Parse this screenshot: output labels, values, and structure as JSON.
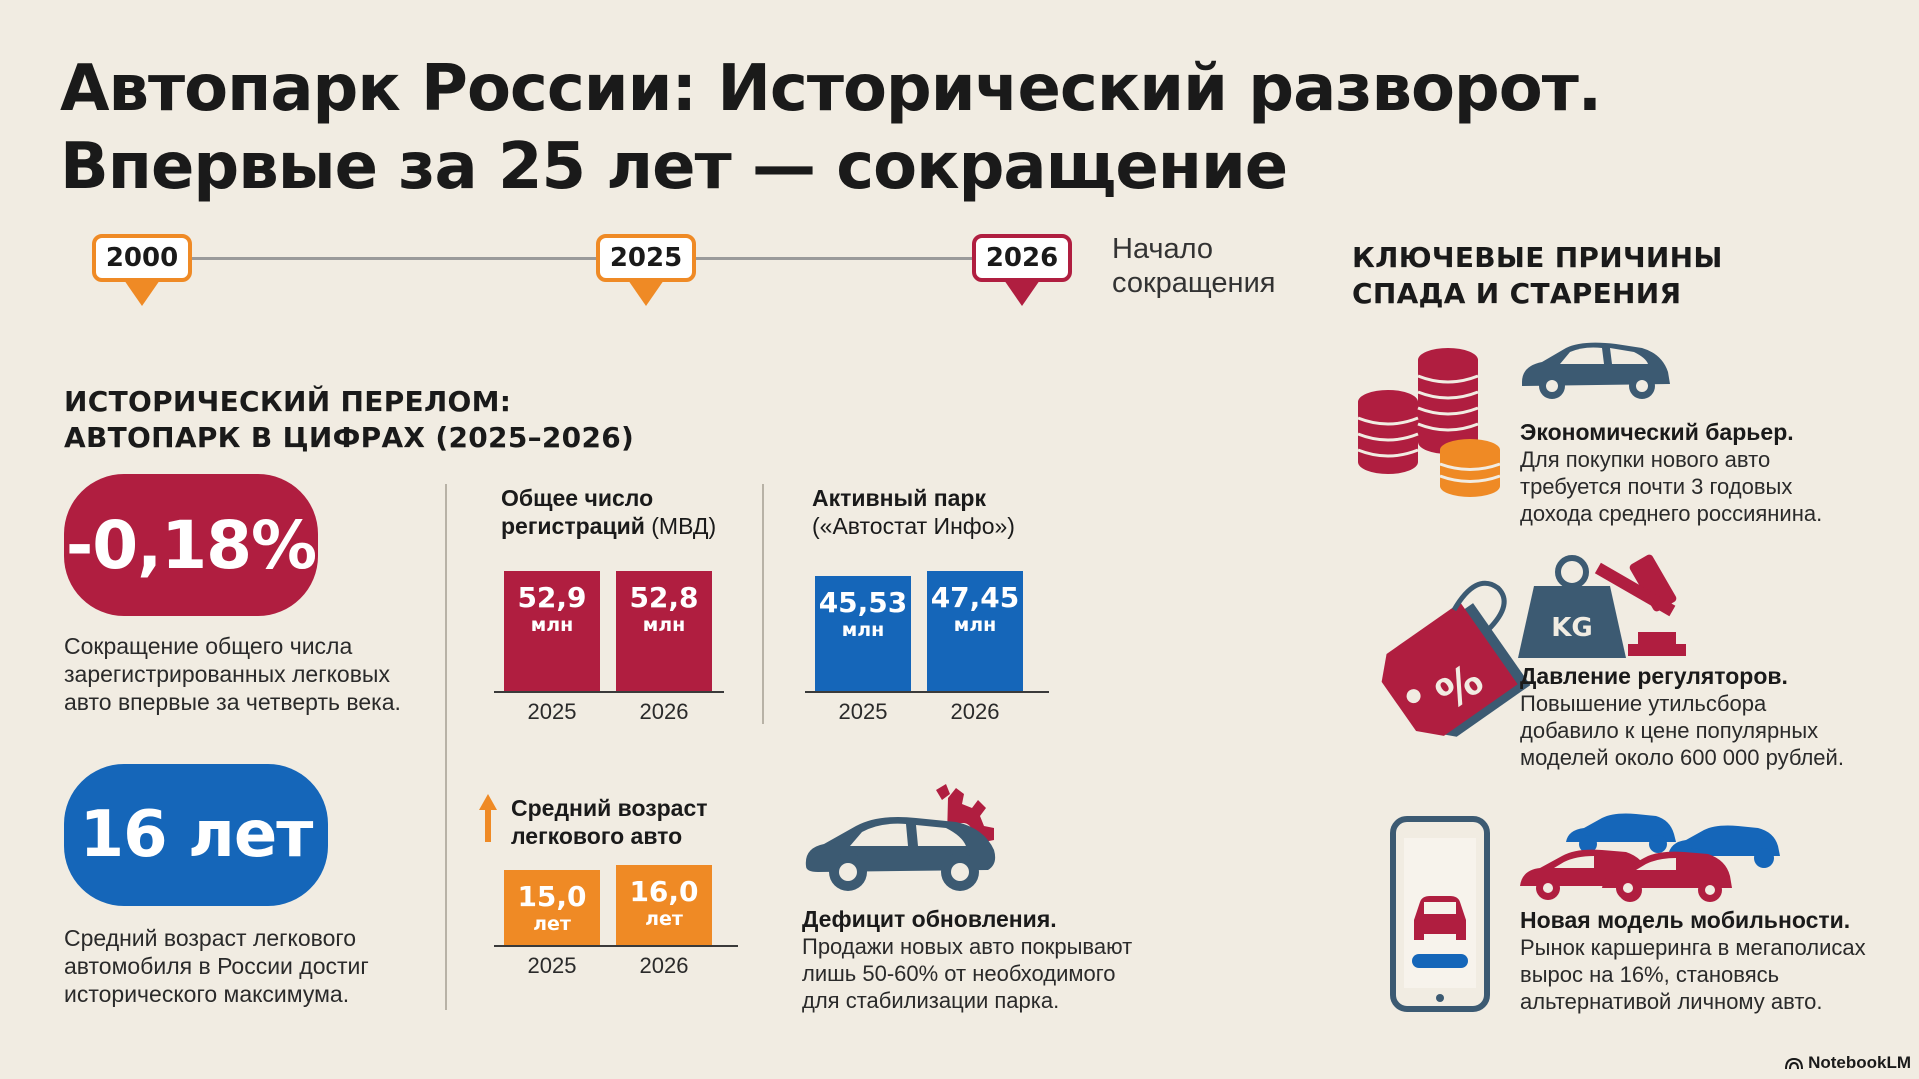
{
  "title": {
    "line1": "Автопарк России: Исторический разворот.",
    "line2": "Впервые за 25 лет — сокращение"
  },
  "timeline": {
    "points": [
      "2000",
      "2025",
      "2026"
    ],
    "note_line1": "Начало",
    "note_line2": "сокращения"
  },
  "section_left": {
    "heading_line1": "ИСТОРИЧЕСКИЙ ПЕРЕЛОМ:",
    "heading_line2": "АВТОПАРК В ЦИФРАХ (2025–2026)"
  },
  "stat1": {
    "value": "-0,18%",
    "desc_line1": "Сокращение общего числа",
    "desc_line2": "зарегистрированных легковых",
    "desc_line3": "авто впервые за четверть века."
  },
  "stat2": {
    "value": "16 лет",
    "desc_line1": "Средний возраст легкового",
    "desc_line2": "автомобиля в России достиг",
    "desc_line3": "исторического максимума."
  },
  "chart_data": [
    {
      "type": "bar",
      "title_bold_1": "Общее число",
      "title_bold_2": "регистраций",
      "title_rest": " (МВД)",
      "categories": [
        "2025",
        "2026"
      ],
      "values": [
        52.9,
        52.8
      ],
      "labels": [
        "52,9",
        "52,8"
      ],
      "unit": "млн",
      "color": "#b01e40"
    },
    {
      "type": "bar",
      "title_bold_1": "Активный парк",
      "title_rest": "(«Автостат Инфо»)",
      "categories": [
        "2025",
        "2026"
      ],
      "values": [
        45.53,
        47.45
      ],
      "labels": [
        "45,53",
        "47,45"
      ],
      "unit": "млн",
      "color": "#1566b9"
    },
    {
      "type": "bar",
      "title_bold_1": "Средний возраст",
      "title_bold_2": "легкового авто",
      "categories": [
        "2025",
        "2026"
      ],
      "values": [
        15.0,
        16.0
      ],
      "labels": [
        "15,0",
        "16,0"
      ],
      "unit": "лет",
      "color": "#ef8a25"
    }
  ],
  "deficit": {
    "title": "Дефицит обновления.",
    "line1": "Продажи новых авто покрывают",
    "line2": "лишь 50-60% от необходимого",
    "line3": "для стабилизации парка."
  },
  "reasons": {
    "heading_line1": "КЛЮЧЕВЫЕ ПРИЧИНЫ",
    "heading_line2": "СПАДА И СТАРЕНИЯ",
    "items": [
      {
        "title": "Экономический барьер.",
        "line1": "Для покупки нового авто",
        "line2": "требуется почти 3 годовых",
        "line3": "дохода среднего россиянина."
      },
      {
        "title": "Давление регуляторов.",
        "line1": "Повышение утильсбора",
        "line2": "добавило к цене популярных",
        "line3": "моделей около 600 000 рублей.",
        "icon_text": "KG",
        "tag_text": "%"
      },
      {
        "title": "Новая модель мобильности.",
        "line1": "Рынок каршеринга в мегаполисах",
        "line2": "вырос на 16%, становясь",
        "line3": "альтернативой личному авто."
      }
    ]
  },
  "brand": "NotebookLM",
  "colors": {
    "red": "#b01e40",
    "blue": "#1566b9",
    "orange": "#ef8a25",
    "background": "#f1ece2",
    "dark": "#3c5a72"
  }
}
